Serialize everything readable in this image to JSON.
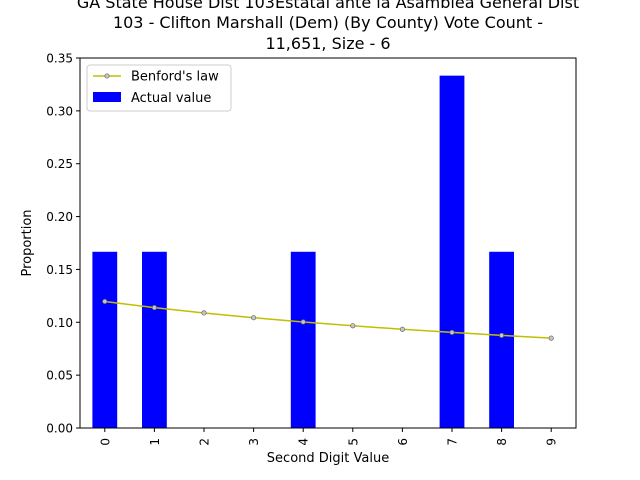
{
  "chart_data": {
    "type": "bar",
    "title_lines": [
      "GA State House Dist 103Estatal ante la Asamblea General Dist",
      "103 - Clifton  Marshall (Dem) (By County) Vote Count -",
      "11,651, Size - 6"
    ],
    "xlabel": "Second Digit Value",
    "ylabel": "Proportion",
    "categories": [
      "0",
      "1",
      "2",
      "3",
      "4",
      "5",
      "6",
      "7",
      "8",
      "9"
    ],
    "series": [
      {
        "name": "Actual value",
        "kind": "bar",
        "color": "#0000ff",
        "values": [
          0.1667,
          0.1667,
          0,
          0,
          0.1667,
          0,
          0,
          0.3333,
          0.1667,
          0
        ]
      },
      {
        "name": "Benford's law",
        "kind": "line",
        "color": "#bfbf00",
        "values": [
          0.1197,
          0.1139,
          0.1088,
          0.1043,
          0.1003,
          0.0967,
          0.0934,
          0.0904,
          0.0876,
          0.085
        ]
      }
    ],
    "ylim": [
      0,
      0.35
    ],
    "yticks": [
      "0.00",
      "0.05",
      "0.10",
      "0.15",
      "0.20",
      "0.25",
      "0.30",
      "0.35"
    ],
    "legend_position": "upper-left"
  }
}
